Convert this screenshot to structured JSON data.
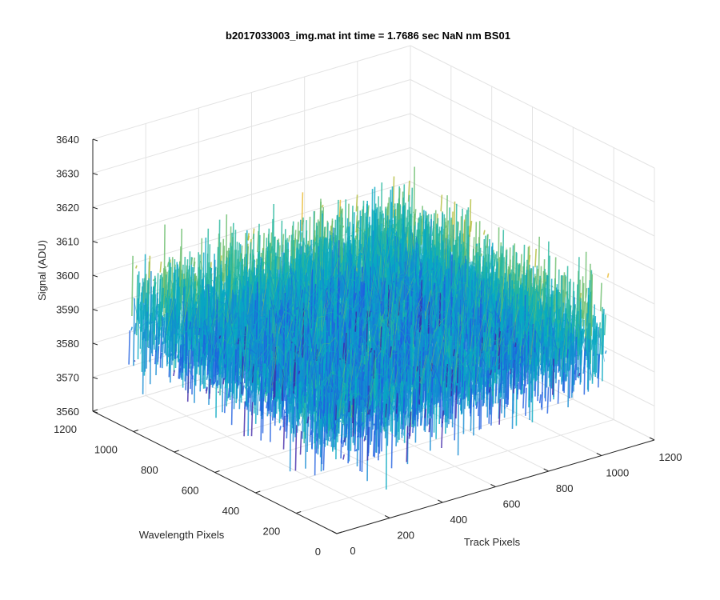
{
  "chart_data": {
    "type": "surface",
    "title": "b2017033003_img.mat int time = 1.7686 sec  NaN nm BS01",
    "xlabel": "Track Pixels",
    "ylabel": "Wavelength Pixels",
    "zlabel": "Signal (ADU)",
    "xlim": [
      0,
      1200
    ],
    "ylim": [
      0,
      1200
    ],
    "zlim": [
      3560,
      3640
    ],
    "x_ticks": [
      0,
      200,
      400,
      600,
      800,
      1000,
      1200
    ],
    "y_ticks": [
      0,
      200,
      400,
      600,
      800,
      1000,
      1200
    ],
    "z_ticks": [
      3560,
      3570,
      3580,
      3590,
      3600,
      3610,
      3620,
      3630,
      3640
    ],
    "surface": {
      "x_range": [
        1,
        1024
      ],
      "y_range": [
        1,
        1024
      ],
      "mean_signal": 3594,
      "noise_band": [
        3572,
        3620
      ]
    },
    "colormap": "parula",
    "grid": true
  }
}
